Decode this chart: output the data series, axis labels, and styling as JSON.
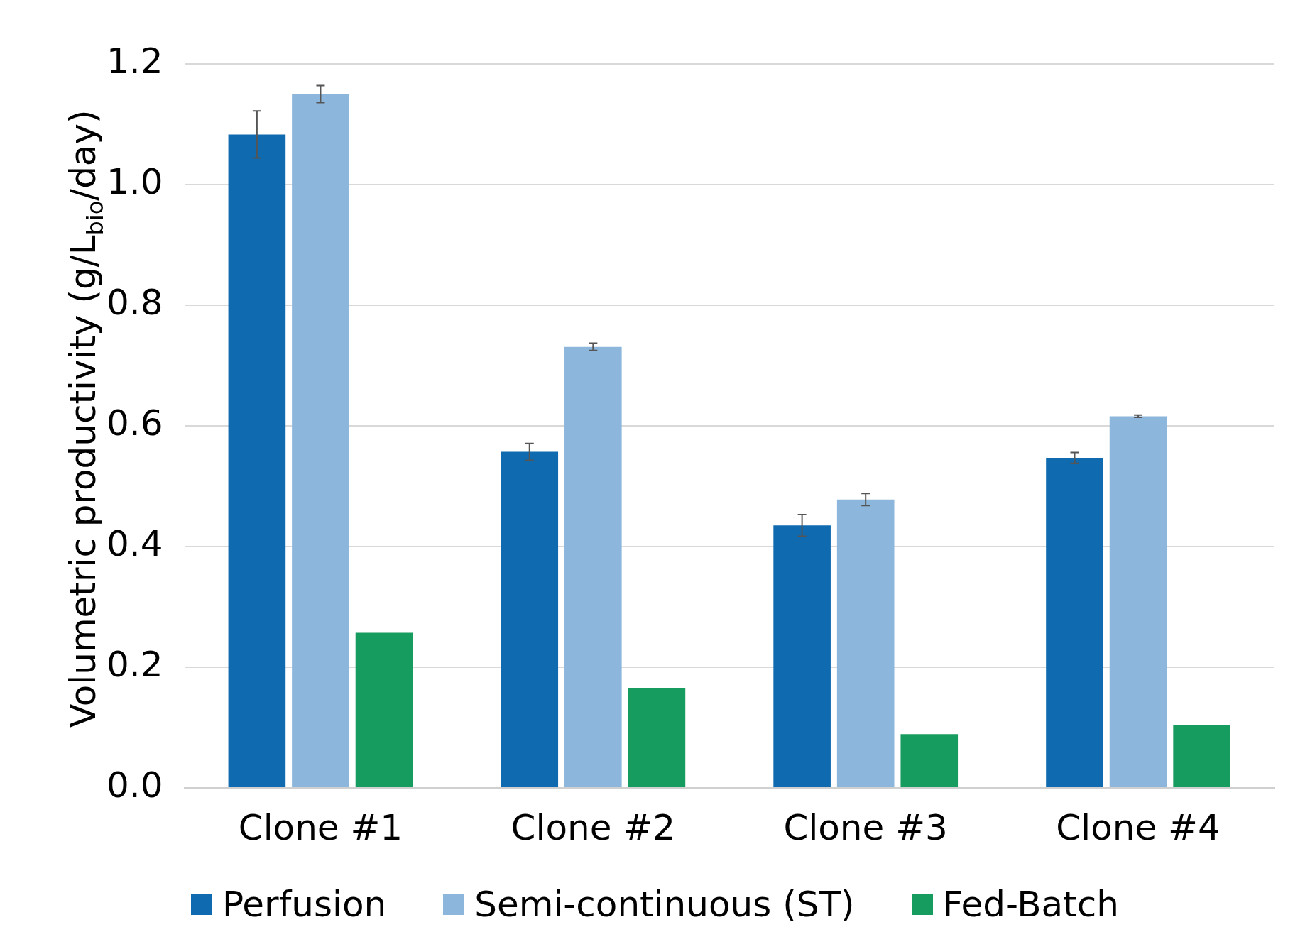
{
  "chart_data": {
    "type": "bar",
    "ylabel": "Volumetric productivity (g/L$_{bio}$/day)",
    "categories": [
      "Clone #1",
      "Clone #2",
      "Clone #3",
      "Clone #4"
    ],
    "series": [
      {
        "name": "Perfusion",
        "color": "#0f6ab0",
        "values": [
          1.083,
          0.557,
          0.435,
          0.547
        ],
        "errors": [
          0.039,
          0.014,
          0.018,
          0.009
        ]
      },
      {
        "name": "Semi-continuous (ST)",
        "color": "#8db6dc",
        "values": [
          1.15,
          0.731,
          0.478,
          0.616
        ],
        "errors": [
          0.014,
          0.006,
          0.01,
          0.002
        ]
      },
      {
        "name": "Fed-Batch",
        "color": "#169c5f",
        "values": [
          0.257,
          0.166,
          0.089,
          0.104
        ]
      }
    ],
    "ylim": [
      0,
      1.2
    ],
    "yticks": [
      {
        "value": 0,
        "label": "0.0"
      },
      {
        "value": 0.2,
        "label": "0.2"
      },
      {
        "value": 0.4,
        "label": "0.4"
      },
      {
        "value": 0.6,
        "label": "0.6"
      },
      {
        "value": 0.8,
        "label": "0.8"
      },
      {
        "value": 1,
        "label": "1.0"
      },
      {
        "value": 1.2,
        "label": "1.2"
      }
    ],
    "grid": "y",
    "legend": "bottom"
  }
}
